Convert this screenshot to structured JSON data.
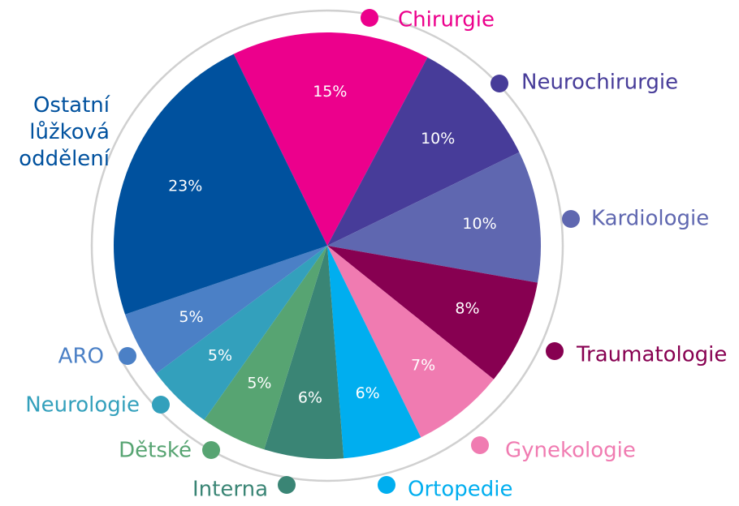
{
  "chart_data": {
    "type": "pie",
    "categories": [
      "Chirurgie",
      "Neurochirurgie",
      "Kardiologie",
      "Traumatologie",
      "Gynekologie",
      "Ortopedie",
      "Interna",
      "Dětské",
      "Neurologie",
      "ARO",
      "Ostatní lůžková oddělení"
    ],
    "values": [
      15,
      10,
      10,
      8,
      7,
      6,
      6,
      5,
      5,
      5,
      23
    ],
    "value_labels": [
      "15%",
      "10%",
      "10%",
      "8%",
      "7%",
      "6%",
      "6%",
      "5%",
      "5%",
      "5%",
      "23%"
    ],
    "colors": [
      "#ec008c",
      "#473c99",
      "#5f67b0",
      "#870051",
      "#f07bb1",
      "#00aeef",
      "#3a8575",
      "#57a472",
      "#33a0bc",
      "#4b80c6",
      "#00519e"
    ]
  }
}
